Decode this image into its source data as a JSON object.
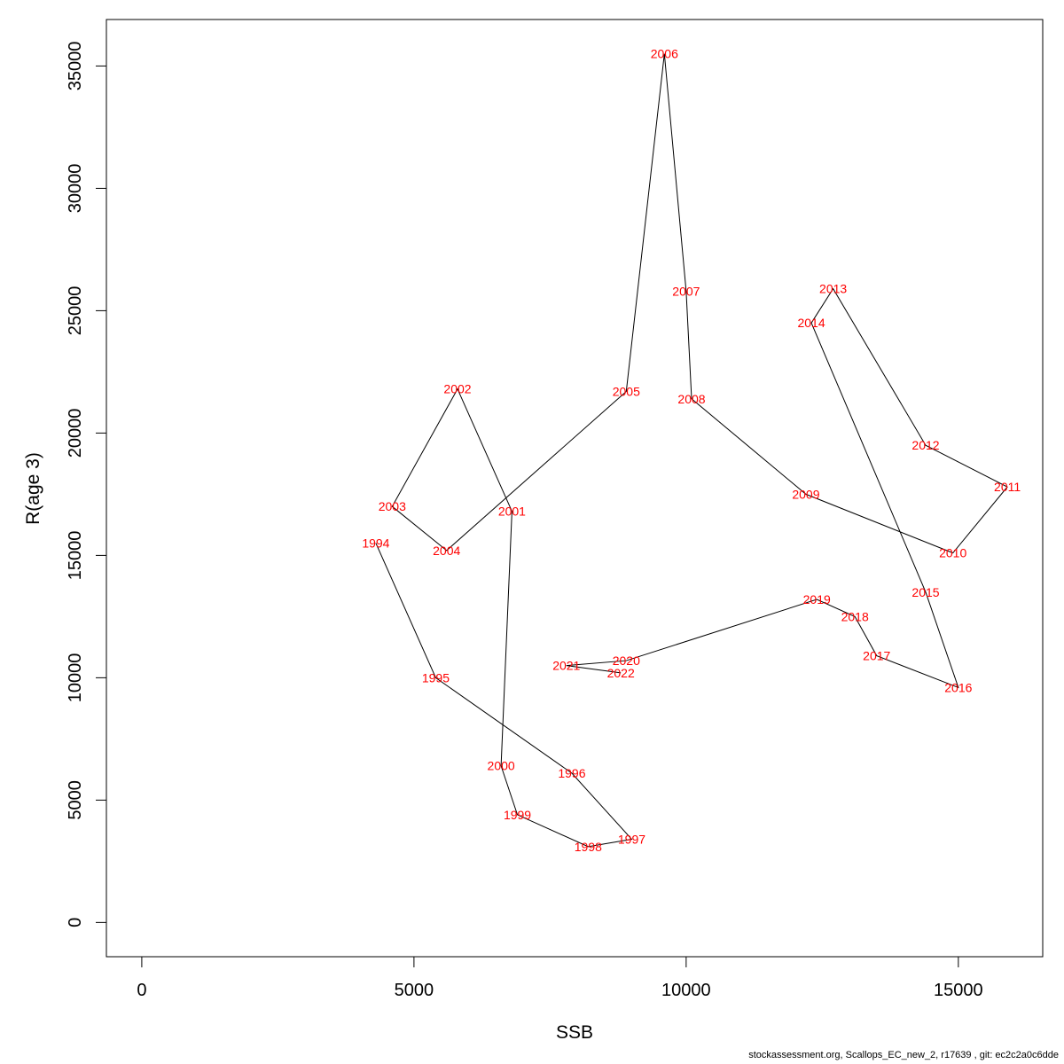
{
  "chart_data": {
    "type": "line",
    "title": "",
    "xlabel": "SSB",
    "ylabel": "R(age 3)",
    "xlim": [
      -650,
      16550
    ],
    "ylim": [
      -1400,
      36900
    ],
    "xticks": [
      0,
      5000,
      10000,
      15000
    ],
    "yticks": [
      0,
      5000,
      10000,
      15000,
      20000,
      25000,
      30000,
      35000
    ],
    "grid": false,
    "line_color": "#000000",
    "label_color": "#ff0000",
    "points": [
      {
        "label": "1994",
        "x": 4300,
        "y": 15500
      },
      {
        "label": "1995",
        "x": 5400,
        "y": 10000
      },
      {
        "label": "1996",
        "x": 7900,
        "y": 6100
      },
      {
        "label": "1997",
        "x": 9000,
        "y": 3400
      },
      {
        "label": "1998",
        "x": 8200,
        "y": 3100
      },
      {
        "label": "1999",
        "x": 6900,
        "y": 4400
      },
      {
        "label": "2000",
        "x": 6600,
        "y": 6400
      },
      {
        "label": "2001",
        "x": 6800,
        "y": 16800
      },
      {
        "label": "2002",
        "x": 5800,
        "y": 21800
      },
      {
        "label": "2003",
        "x": 4600,
        "y": 17000
      },
      {
        "label": "2004",
        "x": 5600,
        "y": 15200
      },
      {
        "label": "2005",
        "x": 8900,
        "y": 21700
      },
      {
        "label": "2006",
        "x": 9600,
        "y": 35500
      },
      {
        "label": "2007",
        "x": 10000,
        "y": 25800
      },
      {
        "label": "2008",
        "x": 10100,
        "y": 21400
      },
      {
        "label": "2009",
        "x": 12200,
        "y": 17500
      },
      {
        "label": "2010",
        "x": 14900,
        "y": 15100
      },
      {
        "label": "2011",
        "x": 15900,
        "y": 17800
      },
      {
        "label": "2012",
        "x": 14400,
        "y": 19500
      },
      {
        "label": "2013",
        "x": 12700,
        "y": 25900
      },
      {
        "label": "2014",
        "x": 12300,
        "y": 24500
      },
      {
        "label": "2015",
        "x": 14400,
        "y": 13500
      },
      {
        "label": "2016",
        "x": 15000,
        "y": 9600
      },
      {
        "label": "2017",
        "x": 13500,
        "y": 10900
      },
      {
        "label": "2018",
        "x": 13100,
        "y": 12500
      },
      {
        "label": "2019",
        "x": 12400,
        "y": 13200
      },
      {
        "label": "2020",
        "x": 8900,
        "y": 10700
      },
      {
        "label": "2021",
        "x": 7800,
        "y": 10500
      },
      {
        "label": "2022",
        "x": 8800,
        "y": 10200
      }
    ]
  },
  "footer_text": "stockassessment.org, Scallops_EC_new_2, r17639 , git: ec2c2a0c6dde"
}
